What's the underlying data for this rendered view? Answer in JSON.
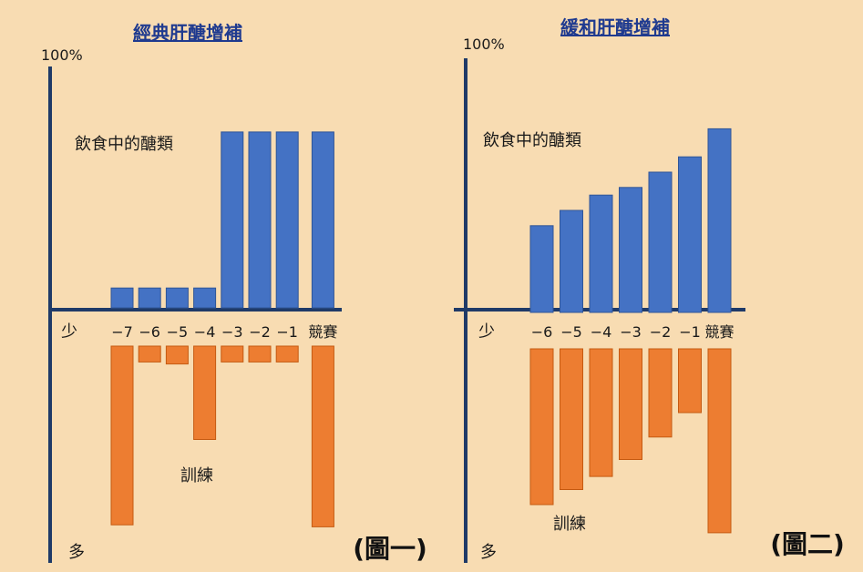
{
  "colors": {
    "background": "#f8dcb2",
    "axis": "#1f3a68",
    "diet_bar": "#4472c4",
    "diet_bar_edge": "#2f5597",
    "training_bar": "#ed7d31",
    "training_bar_edge": "#c55a11",
    "title": "#1f3a8f",
    "text": "#1a1a1a"
  },
  "chart_data": [
    {
      "type": "bar",
      "title": "經典肝醣增補",
      "figure_label": "(圖一)",
      "y_top_label": "100%",
      "series_top_label": "飲食中的醣類",
      "series_bottom_label": "訓練",
      "axis_low_label": "少",
      "axis_high_label": "多",
      "categories": [
        "−7",
        "−6",
        "−5",
        "−4",
        "−3",
        "−2",
        "−1",
        "競賽"
      ],
      "series": [
        {
          "name": "飲食中的醣類",
          "direction": "up",
          "ylim": [
            0,
            100
          ],
          "values": [
            8,
            8,
            8,
            8,
            71,
            71,
            71,
            71
          ]
        },
        {
          "name": "訓練",
          "direction": "down",
          "ylim": [
            0,
            100
          ],
          "values": [
            90,
            8,
            9,
            47,
            8,
            8,
            8,
            91
          ]
        }
      ]
    },
    {
      "type": "bar",
      "title": "緩和肝醣增補",
      "figure_label": "(圖二)",
      "y_top_label": "100%",
      "series_top_label": "飲食中的醣類",
      "series_bottom_label": "訓練",
      "axis_low_label": "少",
      "axis_high_label": "多",
      "categories": [
        "−6",
        "−5",
        "−4",
        "−3",
        "−2",
        "−1",
        "競賽"
      ],
      "series": [
        {
          "name": "飲食中的醣類",
          "direction": "up",
          "ylim": [
            0,
            100
          ],
          "values": [
            34,
            40,
            46,
            49,
            55,
            61,
            72
          ]
        },
        {
          "name": "訓練",
          "direction": "down",
          "ylim": [
            0,
            100
          ],
          "values": [
            83,
            75,
            68,
            59,
            47,
            34,
            98
          ]
        }
      ]
    }
  ]
}
